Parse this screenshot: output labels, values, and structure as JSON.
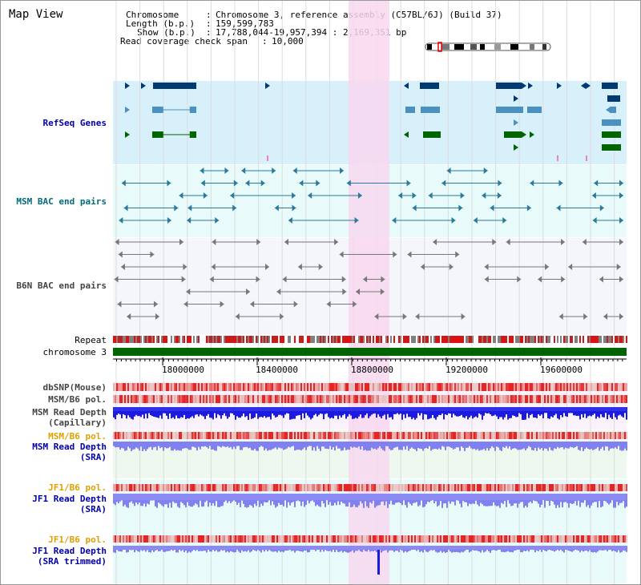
{
  "title": "Map View",
  "info": {
    "chromosome_label": "Chromosome",
    "chromosome_value": "Chromosome 3, reference assembly (C57BL/6J) (Build 37)",
    "length_label": "Length (b.p.)",
    "length_value": "159,599,783",
    "show_label": "Show (b.p.)",
    "show_value": "17,788,044-19,957,394 : 2,169,351 bp",
    "coverage_label": "Read coverage check span",
    "coverage_value": "10,000"
  },
  "tracks": {
    "refseq": "RefSeq Genes",
    "msm_bac": "MSM BAC end pairs",
    "b6n_bac": "B6N BAC end pairs",
    "repeat": "Repeat",
    "chromosome": "chromosome 3",
    "dbsnp": "dbSNP(Mouse)",
    "msm_b6_pol_1": "MSM/B6 pol.",
    "msm_depth_cap_1": "MSM Read Depth",
    "msm_depth_cap_2": "(Capillary)",
    "msm_b6_pol_2": "MSM/B6 pol.",
    "msm_depth_sra_1": "MSM Read Depth",
    "msm_depth_sra_2": "(SRA)",
    "jf1_b6_pol_1": "JF1/B6 pol.",
    "jf1_depth_sra_1": "JF1 Read Depth",
    "jf1_depth_sra_2": "(SRA)",
    "jf1_b6_pol_2": "JF1/B6 pol.",
    "jf1_depth_trim_1": "JF1 Read Depth",
    "jf1_depth_trim_2": "(SRA trimmed)"
  },
  "axis": {
    "ticks": [
      "18000000",
      "18400000",
      "18800000",
      "19200000",
      "19600000"
    ]
  },
  "colors": {
    "refseq_bg": "#d8f0fa",
    "bac_bg": "#e8fafa",
    "highlight": "#f8d8f0",
    "chromosome": "#006400",
    "gene_dark": "#003a70",
    "gene_mid": "#4a90c0",
    "gene_green": "#006400",
    "msm_pair": "#2a7a9a",
    "b6n_pair": "#777777",
    "depth_blue": "#1a1ae0",
    "depth_light": "#8080f0",
    "pol_red": "#e83030"
  }
}
